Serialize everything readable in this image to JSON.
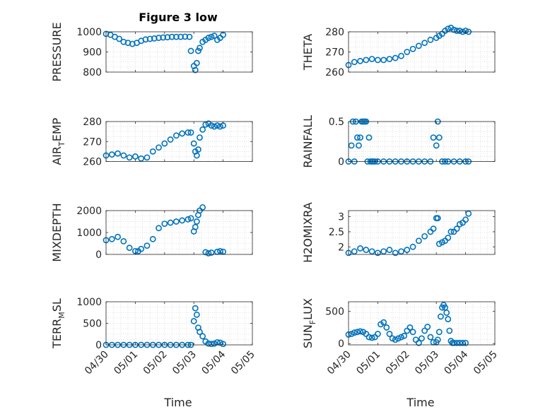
{
  "figure": {
    "title": "Figure 3 low",
    "marker_color": "#0072bd",
    "x_ticks": [
      "04/30",
      "05/01",
      "05/02",
      "05/03",
      "05/04",
      "05/05"
    ],
    "x_range_days": [
      0,
      5
    ],
    "xlabel": "Time",
    "grid": true
  },
  "chart_data": [
    {
      "type": "scatter",
      "ylabel": "PRESSURE",
      "ylim": [
        800,
        1000
      ],
      "yticks": [
        800,
        900,
        1000
      ],
      "series": [
        {
          "x": [
            0.0,
            0.15,
            0.3,
            0.45,
            0.6,
            0.75,
            0.9,
            1.05,
            1.2,
            1.35,
            1.5,
            1.65,
            1.8,
            1.95,
            2.1,
            2.25,
            2.4,
            2.55,
            2.7,
            2.85,
            2.9,
            3.0,
            3.05,
            3.1,
            3.15,
            3.2,
            3.3,
            3.4,
            3.5,
            3.6,
            3.7,
            3.8,
            3.9,
            4.0
          ],
          "y": [
            990,
            985,
            975,
            965,
            950,
            945,
            940,
            945,
            955,
            962,
            965,
            967,
            970,
            972,
            973,
            975,
            975,
            975,
            976,
            975,
            905,
            830,
            810,
            845,
            905,
            920,
            950,
            960,
            970,
            975,
            980,
            960,
            970,
            985
          ]
        }
      ]
    },
    {
      "type": "scatter",
      "ylabel": "THETA",
      "ylim": [
        260,
        280
      ],
      "yticks": [
        260,
        270,
        280
      ],
      "series": [
        {
          "x": [
            0.0,
            0.2,
            0.4,
            0.6,
            0.8,
            1.0,
            1.2,
            1.4,
            1.6,
            1.8,
            2.0,
            2.2,
            2.4,
            2.6,
            2.8,
            3.0,
            3.1,
            3.2,
            3.3,
            3.4,
            3.5,
            3.6,
            3.7,
            3.8,
            3.9,
            4.0,
            4.1
          ],
          "y": [
            263.5,
            265,
            265.5,
            266,
            266.5,
            266,
            266,
            266.5,
            267,
            268,
            270,
            271.5,
            273,
            274.5,
            276,
            277,
            278,
            279,
            280.5,
            281.5,
            282,
            281,
            280.5,
            280.5,
            280,
            280.5,
            280
          ]
        }
      ]
    },
    {
      "type": "scatter",
      "ylabel": "AIR_TEMP",
      "ylim": [
        260,
        280
      ],
      "yticks": [
        260,
        270,
        280
      ],
      "series": [
        {
          "x": [
            0.0,
            0.2,
            0.4,
            0.6,
            0.8,
            1.0,
            1.2,
            1.4,
            1.6,
            1.8,
            2.0,
            2.2,
            2.4,
            2.6,
            2.8,
            2.9,
            3.0,
            3.05,
            3.1,
            3.15,
            3.2,
            3.3,
            3.4,
            3.5,
            3.6,
            3.7,
            3.8,
            3.9,
            4.0
          ],
          "y": [
            263,
            263.5,
            264,
            263,
            262,
            262.5,
            261.5,
            262,
            265,
            267,
            269,
            271,
            273,
            274,
            274.5,
            274.5,
            269,
            265,
            263,
            266,
            272,
            276,
            278.5,
            279,
            278,
            277.5,
            278,
            277.5,
            278
          ]
        }
      ]
    },
    {
      "type": "scatter",
      "ylabel": "RAINFALL",
      "ylim": [
        0,
        0.5
      ],
      "yticks": [
        0,
        0.5
      ],
      "series": [
        {
          "x": [
            0.0,
            0.1,
            0.15,
            0.2,
            0.25,
            0.3,
            0.35,
            0.4,
            0.45,
            0.5,
            0.55,
            0.6,
            0.65,
            0.7,
            0.75,
            0.8,
            0.85,
            0.9,
            1.0,
            1.2,
            1.4,
            1.6,
            1.8,
            2.0,
            2.2,
            2.4,
            2.6,
            2.8,
            2.9,
            3.0,
            3.05,
            3.1,
            3.2,
            3.3,
            3.4,
            3.6,
            3.8,
            4.0,
            4.1
          ],
          "y": [
            0,
            0.2,
            0.5,
            0,
            0.5,
            0.3,
            0.2,
            0.3,
            0.5,
            0.5,
            0.5,
            0.5,
            0,
            0.3,
            0,
            0,
            0,
            0,
            0,
            0,
            0,
            0,
            0,
            0,
            0,
            0,
            0,
            0,
            0.3,
            0.2,
            0.5,
            0.3,
            0,
            0,
            0,
            0,
            0,
            0,
            0
          ]
        }
      ]
    },
    {
      "type": "scatter",
      "ylabel": "MIXDEPTH",
      "ylim": [
        0,
        2000
      ],
      "yticks": [
        0,
        1000,
        2000
      ],
      "series": [
        {
          "x": [
            0.0,
            0.2,
            0.4,
            0.6,
            0.8,
            1.0,
            1.1,
            1.2,
            1.4,
            1.6,
            1.8,
            2.0,
            2.2,
            2.4,
            2.6,
            2.8,
            2.9,
            3.0,
            3.05,
            3.1,
            3.15,
            3.2,
            3.3,
            3.4,
            3.5,
            3.6,
            3.8,
            3.9,
            4.0
          ],
          "y": [
            650,
            700,
            800,
            600,
            300,
            150,
            150,
            250,
            400,
            700,
            1200,
            1400,
            1450,
            1500,
            1550,
            1600,
            1650,
            1050,
            1250,
            1500,
            1800,
            2000,
            2150,
            100,
            50,
            80,
            120,
            150,
            120
          ]
        }
      ]
    },
    {
      "type": "scatter",
      "ylabel": "H2OMIXRA",
      "ylim": [
        1.75,
        3.2
      ],
      "yticks": [
        2,
        2.5,
        3
      ],
      "series": [
        {
          "x": [
            0.0,
            0.2,
            0.4,
            0.6,
            0.8,
            1.0,
            1.2,
            1.4,
            1.6,
            1.8,
            2.0,
            2.2,
            2.4,
            2.6,
            2.8,
            2.9,
            3.0,
            3.05,
            3.1,
            3.2,
            3.3,
            3.4,
            3.5,
            3.6,
            3.7,
            3.8,
            3.9,
            4.0,
            4.1
          ],
          "y": [
            1.8,
            1.85,
            1.95,
            1.9,
            1.85,
            1.8,
            1.85,
            1.9,
            1.8,
            1.85,
            1.9,
            2.0,
            2.2,
            2.35,
            2.5,
            2.6,
            2.95,
            2.95,
            2.1,
            2.15,
            2.2,
            2.3,
            2.5,
            2.5,
            2.6,
            2.75,
            2.8,
            2.9,
            3.1
          ]
        }
      ]
    },
    {
      "type": "scatter",
      "ylabel": "TERR_MSL",
      "ylim": [
        0,
        1000
      ],
      "yticks": [
        0,
        500,
        1000
      ],
      "series": [
        {
          "x": [
            0.0,
            0.2,
            0.4,
            0.6,
            0.8,
            1.0,
            1.2,
            1.4,
            1.6,
            1.8,
            2.0,
            2.2,
            2.4,
            2.6,
            2.8,
            2.9,
            3.0,
            3.05,
            3.1,
            3.15,
            3.2,
            3.3,
            3.4,
            3.5,
            3.6,
            3.7,
            3.8,
            3.9,
            4.0
          ],
          "y": [
            0,
            0,
            0,
            0,
            0,
            0,
            0,
            0,
            0,
            0,
            0,
            0,
            0,
            0,
            0,
            0,
            550,
            850,
            700,
            400,
            300,
            200,
            80,
            30,
            20,
            30,
            60,
            50,
            20
          ]
        }
      ]
    },
    {
      "type": "scatter",
      "ylabel": "SUN_FLUX",
      "ylim": [
        -20,
        650
      ],
      "yticks": [
        0,
        500
      ],
      "series": [
        {
          "x": [
            0.0,
            0.1,
            0.2,
            0.3,
            0.4,
            0.5,
            0.6,
            0.7,
            0.8,
            0.9,
            1.0,
            1.1,
            1.2,
            1.3,
            1.4,
            1.5,
            1.6,
            1.7,
            1.8,
            1.9,
            2.0,
            2.1,
            2.2,
            2.3,
            2.4,
            2.5,
            2.6,
            2.7,
            2.8,
            2.9,
            3.0,
            3.05,
            3.1,
            3.15,
            3.2,
            3.25,
            3.3,
            3.35,
            3.4,
            3.45,
            3.5,
            3.55,
            3.6,
            3.7,
            3.8,
            3.9,
            4.0
          ],
          "y": [
            140,
            150,
            170,
            180,
            190,
            180,
            150,
            100,
            90,
            100,
            150,
            300,
            330,
            250,
            150,
            80,
            60,
            80,
            100,
            120,
            200,
            250,
            180,
            60,
            10,
            80,
            200,
            260,
            100,
            20,
            20,
            60,
            180,
            420,
            560,
            600,
            560,
            480,
            380,
            200,
            40,
            10,
            10,
            10,
            10,
            10,
            10
          ]
        }
      ]
    }
  ]
}
